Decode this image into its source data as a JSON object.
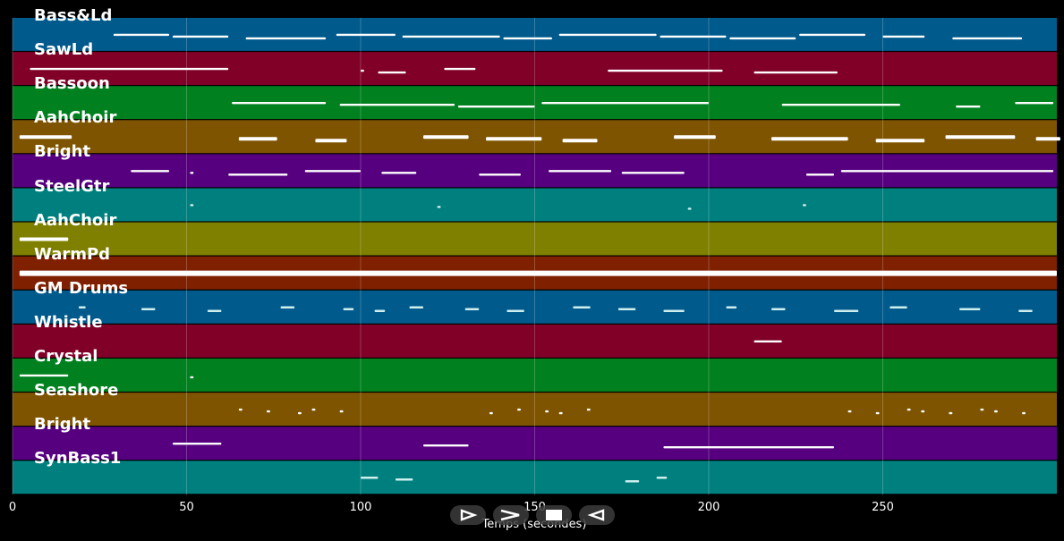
{
  "tracks": [
    {
      "name": "Bass&Ld",
      "color": "#005a8c"
    },
    {
      "name": "SawLd",
      "color": "#800028"
    },
    {
      "name": "Bassoon",
      "color": "#00801e"
    },
    {
      "name": "AahChoir",
      "color": "#7f5400"
    },
    {
      "name": "Bright",
      "color": "#560080"
    },
    {
      "name": "SteelGtr",
      "color": "#007f7f"
    },
    {
      "name": "AahChoir",
      "color": "#7f7f00"
    },
    {
      "name": "WarmPd",
      "color": "#7f2000"
    },
    {
      "name": "GM Drums",
      "color": "#005a8c"
    },
    {
      "name": "Whistle",
      "color": "#800028"
    },
    {
      "name": "Crystal",
      "color": "#00801e"
    },
    {
      "name": "Seashore",
      "color": "#7f5400"
    },
    {
      "name": "Bright",
      "color": "#560080"
    },
    {
      "name": "SynBass1",
      "color": "#007f7f"
    }
  ],
  "axis": {
    "xlabel": "Temps (secondes)",
    "xlim": [
      0,
      300
    ],
    "ticks": [
      0,
      50,
      100,
      150,
      200,
      250
    ],
    "tick_labels": [
      "0",
      "50",
      "100",
      "150",
      "200",
      "250"
    ]
  },
  "controls": [
    {
      "name": "play-button",
      "icon": "play-icon"
    },
    {
      "name": "fast-forward-button",
      "icon": "fast-forward-icon"
    },
    {
      "name": "stop-button",
      "icon": "stop-icon"
    },
    {
      "name": "rewind-button",
      "icon": "rewind-icon"
    }
  ],
  "notes": [
    [
      [
        29,
        45
      ],
      [
        46,
        62
      ],
      [
        67,
        90
      ],
      [
        93,
        110
      ],
      [
        112,
        140
      ],
      [
        141,
        155
      ],
      [
        157,
        185
      ],
      [
        186,
        205
      ],
      [
        206,
        225
      ],
      [
        226,
        245
      ],
      [
        250,
        262
      ],
      [
        270,
        290
      ]
    ],
    [
      [
        5,
        62
      ],
      [
        100,
        101
      ],
      [
        105,
        113
      ],
      [
        124,
        133
      ],
      [
        171,
        204
      ],
      [
        213,
        237
      ]
    ],
    [
      [
        63,
        90
      ],
      [
        94,
        127
      ],
      [
        128,
        150
      ],
      [
        152,
        200
      ],
      [
        221,
        255
      ],
      [
        271,
        278
      ],
      [
        288,
        299
      ]
    ],
    [
      [
        2,
        17
      ],
      [
        65,
        76
      ],
      [
        87,
        96
      ],
      [
        118,
        131
      ],
      [
        136,
        152
      ],
      [
        158,
        168
      ],
      [
        190,
        202
      ],
      [
        218,
        240
      ],
      [
        248,
        262
      ],
      [
        268,
        288
      ],
      [
        294,
        301
      ]
    ],
    [
      [
        34,
        45
      ],
      [
        51,
        52
      ],
      [
        62,
        79
      ],
      [
        84,
        100
      ],
      [
        106,
        116
      ],
      [
        134,
        146
      ],
      [
        154,
        172
      ],
      [
        175,
        193
      ],
      [
        228,
        236
      ],
      [
        238,
        299
      ]
    ],
    [
      [
        51,
        52
      ],
      [
        122,
        123
      ],
      [
        194,
        195
      ],
      [
        227,
        228
      ]
    ],
    [
      [
        2,
        16
      ]
    ],
    [
      [
        2,
        300
      ]
    ],
    [
      [
        19,
        21
      ],
      [
        37,
        41
      ],
      [
        56,
        60
      ],
      [
        77,
        81
      ],
      [
        95,
        98
      ],
      [
        104,
        107
      ],
      [
        114,
        118
      ],
      [
        130,
        134
      ],
      [
        142,
        147
      ],
      [
        161,
        166
      ],
      [
        174,
        179
      ],
      [
        187,
        193
      ],
      [
        205,
        208
      ],
      [
        218,
        222
      ],
      [
        236,
        243
      ],
      [
        252,
        257
      ],
      [
        272,
        278
      ],
      [
        289,
        293
      ]
    ],
    [
      [
        213,
        221
      ]
    ],
    [
      [
        2,
        16
      ],
      [
        51,
        52
      ]
    ],
    [
      [
        65,
        66
      ],
      [
        73,
        74
      ],
      [
        82,
        83
      ],
      [
        86,
        87
      ],
      [
        94,
        95
      ],
      [
        137,
        138
      ],
      [
        145,
        146
      ],
      [
        153,
        154
      ],
      [
        157,
        158
      ],
      [
        165,
        166
      ],
      [
        240,
        241
      ],
      [
        248,
        249
      ],
      [
        257,
        258
      ],
      [
        261,
        262
      ],
      [
        269,
        270
      ],
      [
        278,
        279
      ],
      [
        282,
        283
      ],
      [
        290,
        291
      ]
    ],
    [
      [
        46,
        60
      ],
      [
        118,
        131
      ],
      [
        187,
        236
      ]
    ],
    [
      [
        100,
        105
      ],
      [
        110,
        115
      ],
      [
        176,
        180
      ],
      [
        185,
        188
      ]
    ]
  ]
}
